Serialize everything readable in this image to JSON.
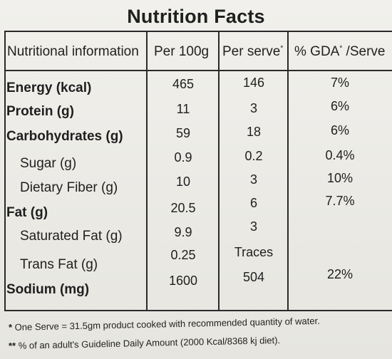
{
  "title": "Nutrition Facts",
  "columns": {
    "nutrient": "Nutritional information",
    "per_100g": "Per 100g",
    "per_serve": "Per serve",
    "per_serve_mark": "*",
    "gda_prefix": "% GDA",
    "gda_mark": "*",
    "gda_suffix": " /Serve"
  },
  "rows": [
    {
      "label": "Energy (kcal)",
      "per_100g": "465",
      "per_serve": "146",
      "gda": "7%"
    },
    {
      "label": "Protein (g)",
      "per_100g": "11",
      "per_serve": "3",
      "gda": "6%"
    },
    {
      "label": "Carbohydrates (g)",
      "per_100g": "59",
      "per_serve": "18",
      "gda": "6%"
    },
    {
      "label": "Sugar (g)",
      "per_100g": "0.9",
      "per_serve": "0.2",
      "gda": "0.4%"
    },
    {
      "label": "Dietary Fiber (g)",
      "per_100g": "10",
      "per_serve": "3",
      "gda": "10%"
    },
    {
      "label": "Fat (g)",
      "per_100g": "20.5",
      "per_serve": "6",
      "gda": "7.7%"
    },
    {
      "label": "Saturated Fat (g)",
      "per_100g": "9.9",
      "per_serve": "3",
      "gda": ""
    },
    {
      "label": "Trans Fat (g)",
      "per_100g": "0.25",
      "per_serve": "Traces",
      "gda": ""
    },
    {
      "label": "Sodium (mg)",
      "per_100g": "1600",
      "per_serve": "504",
      "gda": "22%"
    }
  ],
  "footnotes": {
    "serve_mark": "*",
    "serve_text": " One Serve = 31.5gm product cooked with recommended quantity of water.",
    "gda_mark": "**",
    "gda_text": " % of an adult's Guideline Daily Amount (2000 Kcal/8368 kj diet)."
  }
}
